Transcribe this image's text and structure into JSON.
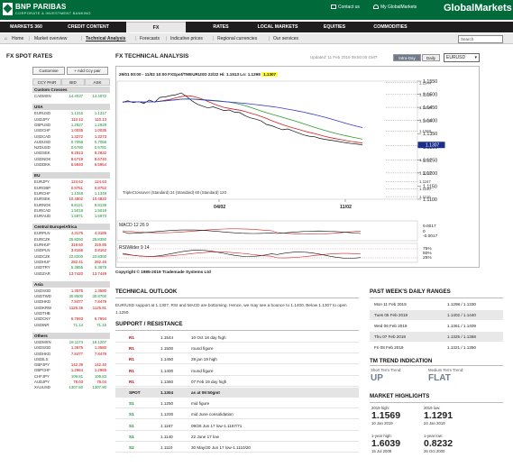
{
  "header": {
    "bank_name": "BNP PARIBAS",
    "bank_sub": "CORPORATE & INVESTMENT BANKING",
    "contact": "Contact us",
    "my_gm": "My GlobalMarkets",
    "brand": "GlobalMarkets"
  },
  "nav": [
    {
      "label": "MARKETS 360"
    },
    {
      "label": "CREDIT CONTENT"
    },
    {
      "label": "FX"
    },
    {
      "label": "RATES"
    },
    {
      "label": "LOCAL MARKETS"
    },
    {
      "label": "EQUITIES"
    },
    {
      "label": "COMMODITIES"
    }
  ],
  "subnav": {
    "home": "Home",
    "items": [
      "Market overview",
      "Technical Analysis",
      "Forecasts",
      "Indicative prices",
      "Regional currencies",
      "Our services"
    ]
  },
  "search": {
    "placeholder": "Search"
  },
  "left": {
    "title": "FX SPOT RATES",
    "customise": "Customise",
    "add_ccy": "+ Add Ccy pair",
    "col_pair": "CCY PAIR",
    "col_bid": "BID",
    "col_ask": "ASK",
    "groups": [
      {
        "name": "Custom Crosses",
        "rows": [
          [
            "CADMXN",
            "14.4037",
            "14.4072",
            "d"
          ]
        ]
      },
      {
        "name": "USA",
        "rows": [
          [
            "EURUSD",
            "1.1316",
            "1.1317",
            "d"
          ],
          [
            "USDJPY",
            "110.12",
            "110.13",
            "u"
          ],
          [
            "GBPUSD",
            "1.2927",
            "1.2928",
            "d"
          ],
          [
            "USDCHF",
            "1.0035",
            "1.0035",
            "u"
          ],
          [
            "USDCAD",
            "1.3272",
            "1.3273",
            "u"
          ],
          [
            "AUDUSD",
            "0.7058",
            "0.7058",
            "d"
          ],
          [
            "NZDUSD",
            "0.6780",
            "0.6781",
            "d"
          ],
          [
            "USDSEK",
            "9.2813",
            "9.2832",
            "u"
          ],
          [
            "USDNOK",
            "8.6719",
            "8.6740",
            "u"
          ],
          [
            "USDDKK",
            "6.5940",
            "6.5954",
            "u"
          ]
        ]
      },
      {
        "name": "EU",
        "rows": [
          [
            "EURJPY",
            "124.62",
            "124.63",
            "u"
          ],
          [
            "EURGBP",
            "0.8751",
            "0.8752",
            "u"
          ],
          [
            "EURCHF",
            "1.1348",
            "1.1349",
            "d"
          ],
          [
            "EURSEK",
            "10.4802",
            "10.4820",
            "u"
          ],
          [
            "EURNOK",
            "9.8121",
            "9.8139",
            "d"
          ],
          [
            "EURCAD",
            "1.5018",
            "1.5019",
            "d"
          ],
          [
            "EURAUD",
            "1.5971",
            "1.5973",
            "d"
          ]
        ]
      },
      {
        "name": "Central Europe/Africa",
        "rows": [
          [
            "EURPLN",
            "4.3175",
            "4.3185",
            "u"
          ],
          [
            "EURCZK",
            "25.8250",
            "25.8350",
            "d"
          ],
          [
            "EURHUF",
            "319.60",
            "319.85",
            "u"
          ],
          [
            "USDPLN",
            "3.8156",
            "3.8162",
            "u"
          ],
          [
            "USDCZK",
            "22.8200",
            "22.8300",
            "d"
          ],
          [
            "USDHUF",
            "282.41",
            "282.46",
            "u"
          ],
          [
            "USDTRY",
            "5.3855",
            "5.3879",
            "d"
          ],
          [
            "USDZAR",
            "13.7420",
            "13.7449",
            "u"
          ]
        ]
      },
      {
        "name": "Asia",
        "rows": [
          [
            "USDSGD",
            "1.3575",
            "1.3580",
            "u"
          ],
          [
            "USDTWD",
            "30.8500",
            "30.8700",
            "d"
          ],
          [
            "USDHKD",
            "7.8477",
            "7.8479",
            "u"
          ],
          [
            "USDKRW",
            "1125.35",
            "1125.81",
            "u"
          ],
          [
            "USDTHB",
            "",
            "",
            " "
          ],
          [
            "USDCNY",
            "6.7693",
            "6.7694",
            "u"
          ],
          [
            "USDINR",
            "71.14",
            "71.15",
            "d"
          ]
        ]
      },
      {
        "name": "Others",
        "rows": [
          [
            "USDMXN",
            "19.1174",
            "19.1207",
            "d"
          ],
          [
            "USDSGD",
            "1.3575",
            "1.3580",
            "u"
          ],
          [
            "USDHKD",
            "7.8477",
            "7.8479",
            "u"
          ],
          [
            "USDILS",
            "",
            "",
            " "
          ],
          [
            "GBPJPY",
            "142.39",
            "142.40",
            "u"
          ],
          [
            "GBPCHF",
            "1.2964",
            "1.2965",
            "u"
          ],
          [
            "CHFJPY",
            "109.81",
            "109.83",
            "d"
          ],
          [
            "AUDJPY",
            "78.03",
            "78.04",
            "u"
          ],
          [
            "XAUUSD",
            "1307.50",
            "1307.90",
            "d"
          ]
        ]
      }
    ]
  },
  "main": {
    "title": "FX TECHNICAL ANALYSIS",
    "updated": "Updated: 11 Feb 2019 09:50:00 GMT",
    "intraday": "Intra-Day",
    "daily": "Daily",
    "pair": "EURUSD",
    "chart_header": "29/01 00:00 - 11/02 10:00 FXSpot/TMEURUSD 22/22 Hi: 1.1513 Lo: 1.1298",
    "chart_last": "1.1307",
    "chart_legend": "TripleCrossover (Standard) 24 (Standard) 60 (Standard) 120",
    "macd_label": "MACD 12 26 9",
    "rsi_label": "RSIWilder 9 14",
    "copyright": "Copyright © 1985-2019 Trademade Systems Ltd"
  },
  "chart_data": {
    "type": "line",
    "x_ticks": [
      "04/02",
      "11/02"
    ],
    "y_ticks": [
      "1.1550",
      "1.1500",
      "1.1450",
      "1.1400",
      "1.1350",
      "1.1300",
      "1.1250",
      "1.1200",
      "1.1150",
      "1.1100"
    ],
    "ylim": [
      1.11,
      1.155
    ],
    "levels": [
      "1.1544",
      "1.1500",
      "1.1450",
      "1.1400",
      "1.1360",
      "1.1304",
      "1.1250",
      "1.1200",
      "1.1167",
      "1.1140",
      "1.1110"
    ],
    "last_price": "1.1307",
    "macd_ticks": [
      "0.0017",
      "0",
      "-0.0017"
    ],
    "rsi_ticks": [
      "75%",
      "50%",
      "25%"
    ],
    "series": [
      {
        "name": "EURUSD",
        "color": "#111111"
      },
      {
        "name": "24",
        "color": "#d42020"
      },
      {
        "name": "60",
        "color": "#2a9a2a"
      },
      {
        "name": "120",
        "color": "#3a3ad0"
      }
    ]
  },
  "outlook": {
    "title": "TECHNICAL OUTLOOK",
    "text": "EUR/USD support at 1.1307, RSI and MACD are bottoming. Hence, we may see a bounce to 1.1400. Below 1.1307 to open 1.1250."
  },
  "support": {
    "title": "SUPPORT / RESISTANCE",
    "rows": [
      {
        "label": "R1",
        "value": "1.1544",
        "note": "10 Oct 18 day high",
        "type": "r"
      },
      {
        "label": "R1",
        "value": "1.1500",
        "note": "round figure",
        "type": "r"
      },
      {
        "label": "R1",
        "value": "1.1450",
        "note": "29 jan 19 high",
        "type": "r"
      },
      {
        "label": "R1",
        "value": "1.1400",
        "note": "round figure",
        "type": "r"
      },
      {
        "label": "R1",
        "value": "1.1360",
        "note": "07 Feb 19 day high",
        "type": "r"
      },
      {
        "label": "SPOT",
        "value": "1.1304",
        "note": "as at 09:50gmt",
        "type": "spot"
      },
      {
        "label": "S1",
        "value": "1.1250",
        "note": "mid figure",
        "type": "s"
      },
      {
        "label": "S1",
        "value": "1.1200",
        "note": "mid June consolidation",
        "type": "s"
      },
      {
        "label": "S1",
        "value": "1.1167",
        "note": "09/26 Jun 17 low-1.1167/71",
        "type": "s"
      },
      {
        "label": "S1",
        "value": "1.1140",
        "note": "22 June 17 low",
        "type": "s"
      },
      {
        "label": "S2",
        "value": "1.1110",
        "note": "30 May/20 Jun 17 low-1.1110/20",
        "type": "s"
      }
    ]
  },
  "past_week": {
    "title": "PAST WEEK'S DAILY RANGES",
    "rows": [
      [
        "Mon 11 Feb 2019",
        "1.1298 / 1.1330"
      ],
      [
        "Tues 05 Feb 2019",
        "1.1402 / 1.1440"
      ],
      [
        "Wed 06 Feb 2019",
        "1.1361 / 1.1409"
      ],
      [
        "Thu 07 Feb 2019",
        "1.1325 / 1.1368"
      ],
      [
        "Fri 08 Feb 2019",
        "1.1321 / 1.1350"
      ]
    ]
  },
  "trend": {
    "title": "TM TREND INDICATION",
    "short_label": "Short Term Trend:",
    "short_value": "UP",
    "medium_label": "Medium Term Trend:",
    "medium_value": "FLAT"
  },
  "highlights": {
    "title": "MARKET HIGHLIGHTS",
    "items": [
      {
        "label": "2019 high:",
        "value": "1.1569",
        "date": "10 Jan 2019"
      },
      {
        "label": "2019 low:",
        "value": "1.1291",
        "date": "24 Jan 2019"
      },
      {
        "label": "1-year high:",
        "value": "1.6039",
        "date": "15 Jul 2008"
      },
      {
        "label": "1-year low:",
        "value": "0.8232",
        "date": "26 Oct 2000"
      }
    ]
  }
}
